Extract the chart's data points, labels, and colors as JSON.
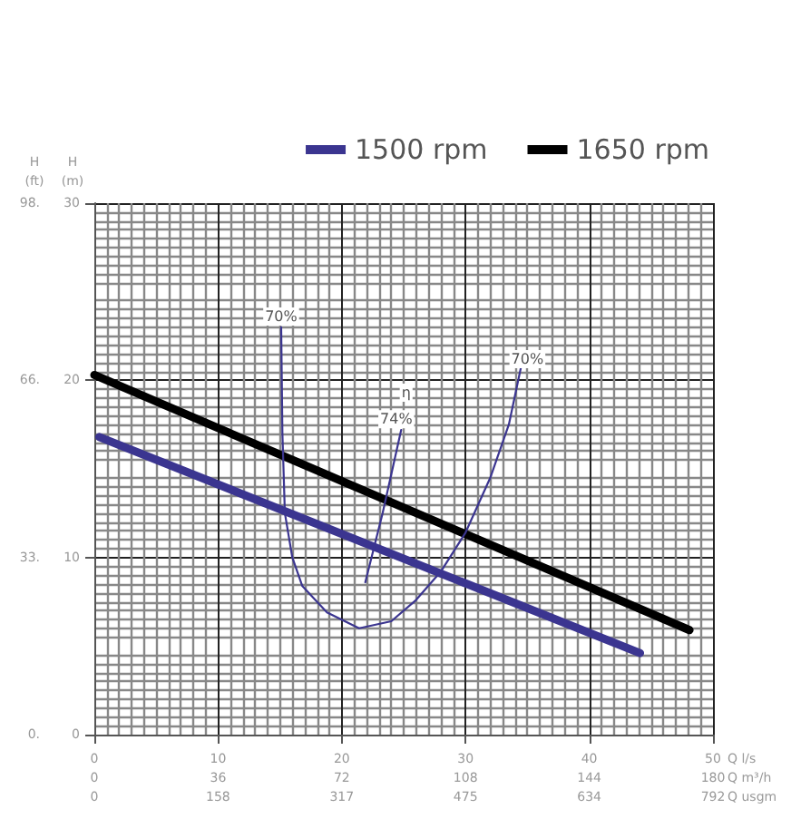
{
  "chart_data": {
    "type": "line",
    "xlabel": "Q l/s",
    "x2label": "Q m³/h",
    "ylabel": "H\n(m)",
    "y2label": "H\n(ft)",
    "xlim": [
      0,
      50
    ],
    "xticks": [
      0,
      10,
      20,
      30,
      40,
      50
    ],
    "x2lim": [
      0,
      180
    ],
    "x2ticks": [
      0,
      36,
      72,
      108,
      144,
      180
    ],
    "ylim": [
      0,
      30
    ],
    "yticks": [
      0,
      10,
      20,
      30
    ],
    "y2lim": [
      0,
      98.4
    ],
    "y2ticks": [
      {
        "value": 0,
        "label": "0."
      },
      {
        "value": 32.8,
        "label": "33."
      },
      {
        "value": 65.6,
        "label": "66."
      },
      {
        "value": 98.4,
        "label": "98."
      }
    ],
    "grid": true,
    "legend": "top right",
    "marker": "none",
    "series": [
      {
        "name": "1500 rpm",
        "color": "#3b3590",
        "x": [
          0.4,
          44.1
        ],
        "values": [
          16.8,
          4.6
        ]
      },
      {
        "name": "1650 rpm",
        "color": "#000000",
        "x": [
          0,
          48.1
        ],
        "values": [
          20.3,
          5.9
        ]
      },
      {
        "color": "#3b3590",
        "x": [
          15.1,
          15.2,
          15.4,
          16.0,
          16.8,
          18.8,
          21.4,
          24,
          26,
          28,
          30,
          32,
          33.5,
          34.5
        ],
        "values": [
          23,
          17,
          12.5,
          10,
          8.4,
          6.9,
          6.0,
          6.4,
          7.6,
          9.2,
          11.4,
          14.5,
          17.5,
          20.8
        ]
      },
      {
        "color": "#3b3590",
        "x": [
          21.9,
          23.3,
          24.8
        ],
        "values": [
          8.6,
          12.5,
          17.2
        ]
      }
    ],
    "annotations": [
      "0",
      "158",
      "317",
      "475",
      "634",
      "792",
      "Q usgm",
      {
        "text": "70%",
        "x": 15.1,
        "y": 23.6
      },
      {
        "text": "70%",
        "x": 35,
        "y": 21.2
      },
      {
        "text": "74%",
        "x": 24.4,
        "y": 17.8
      },
      {
        "text": "η",
        "x": 25.2,
        "y": 19.3
      }
    ]
  }
}
